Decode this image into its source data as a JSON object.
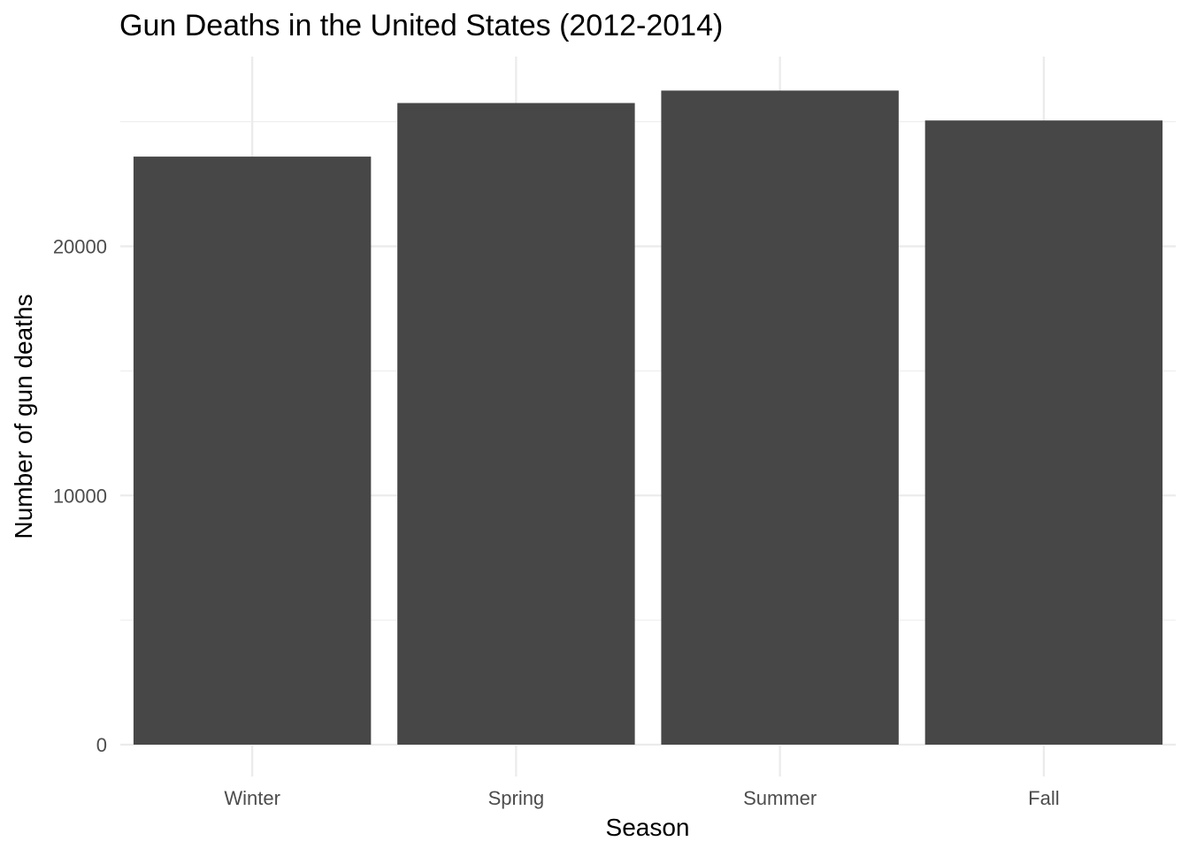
{
  "chart_data": {
    "type": "bar",
    "title": "Gun Deaths in the United States (2012-2014)",
    "xlabel": "Season",
    "ylabel": "Number of gun deaths",
    "categories": [
      "Winter",
      "Spring",
      "Summer",
      "Fall"
    ],
    "values": [
      23600,
      25750,
      26250,
      25050
    ],
    "ylim": [
      0,
      27700
    ],
    "yticks": [
      0,
      10000,
      20000
    ],
    "yticks_labels": [
      "0",
      "10000",
      "20000"
    ],
    "minor_yticks": [
      5000,
      15000,
      25000
    ],
    "grid": true,
    "bar_color": "#474747",
    "grid_color": "#ebebeb"
  }
}
